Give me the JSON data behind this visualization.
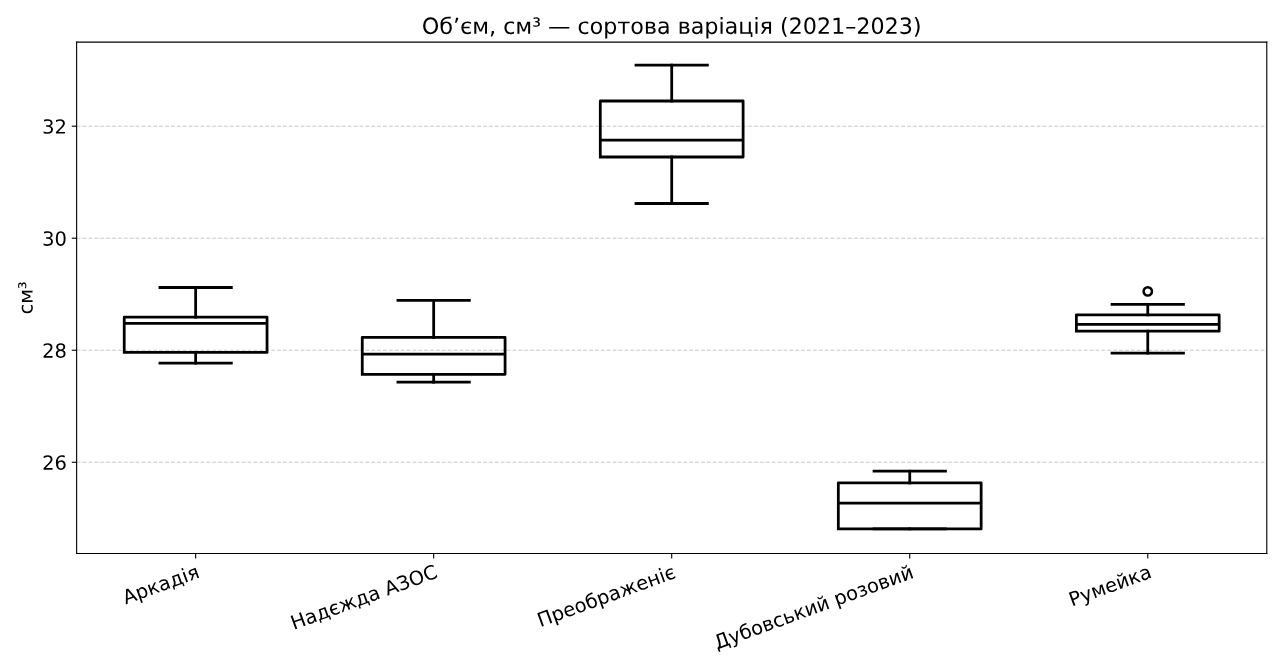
{
  "chart_data": {
    "type": "box",
    "title": "Об’єм, см³ — сортова варіація (2021–2023)",
    "ylabel": "см³",
    "categories": [
      "Аркадія",
      "Надєжда АЗОС",
      "Преображеніє",
      "Дубовський розовий",
      "Румейка"
    ],
    "boxes": [
      {
        "low": 27.77,
        "q1": 27.96,
        "median": 28.48,
        "q3": 28.59,
        "high": 29.12
      },
      {
        "low": 27.43,
        "q1": 27.57,
        "median": 27.93,
        "q3": 28.23,
        "high": 28.89
      },
      {
        "low": 30.62,
        "q1": 31.45,
        "median": 31.75,
        "q3": 32.45,
        "high": 33.09
      },
      {
        "low": 24.81,
        "q1": 24.81,
        "median": 25.27,
        "q3": 25.63,
        "high": 25.84
      },
      {
        "low": 27.95,
        "q1": 28.34,
        "median": 28.46,
        "q3": 28.63,
        "high": 28.82,
        "outliers": [
          29.05
        ]
      }
    ],
    "color": "#000000",
    "ylim": [
      24.37,
      33.5
    ],
    "yticks": [
      26,
      28,
      30,
      32
    ],
    "grid": "y"
  }
}
